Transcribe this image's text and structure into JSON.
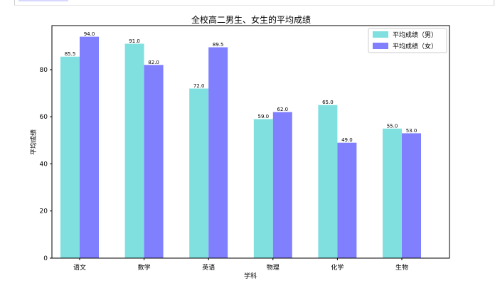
{
  "chart_data": {
    "type": "bar",
    "title": "全校高二男生、女生的平均成绩",
    "xlabel": "学科",
    "ylabel": "平均成绩",
    "categories": [
      "语文",
      "数学",
      "英语",
      "物理",
      "化学",
      "生物"
    ],
    "series": [
      {
        "name": "平均成绩（男）",
        "values": [
          85.5,
          91.0,
          72.0,
          59.0,
          65.0,
          55.0
        ],
        "color": "#80e0e0"
      },
      {
        "name": "平均成绩（女）",
        "values": [
          94.0,
          82.0,
          89.5,
          62.0,
          49.0,
          53.0
        ],
        "color": "#8080ff"
      }
    ],
    "data_labels": [
      [
        "85.5",
        "91.0",
        "72.0",
        "59.0",
        "65.0",
        "55.0"
      ],
      [
        "94.0",
        "82.0",
        "89.5",
        "62.0",
        "49.0",
        "53.0"
      ]
    ],
    "yticks": [
      0,
      20,
      40,
      60,
      80
    ],
    "ytick_labels": [
      "0",
      "20",
      "40",
      "60",
      "80"
    ],
    "ylim": [
      0,
      98.7
    ],
    "grid": false,
    "legend": "top-right"
  }
}
